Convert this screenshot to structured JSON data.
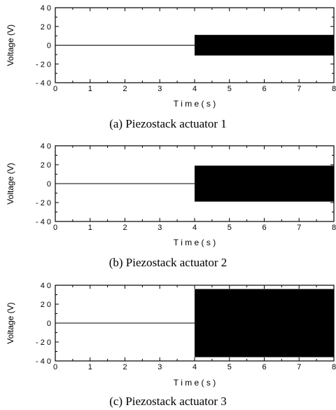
{
  "chart_data": [
    {
      "type": "line",
      "caption": "(a)  Piezostack  actuator  1",
      "xlabel": "T i m e  ( s )",
      "ylabel": "Voltage (V)",
      "xlim": [
        0,
        8
      ],
      "ylim": [
        -40,
        40
      ],
      "xticks": [
        0,
        1,
        2,
        3,
        4,
        5,
        6,
        7,
        8
      ],
      "yticks": [
        -40,
        -20,
        0,
        20,
        40
      ],
      "ytick_labels": [
        "- 4 0",
        "- 2 0",
        "0",
        "2 0",
        "4 0"
      ],
      "series": [
        {
          "x": [
            0,
            4.0
          ],
          "y": [
            0,
            0
          ]
        },
        {
          "x_start": 4.0,
          "x_end": 8.0,
          "y_min": -11,
          "y_max": 11,
          "style": "dense-oscillation"
        }
      ]
    },
    {
      "type": "line",
      "caption": "(b)  Piezostack  actuator  2",
      "xlabel": "T i m e  ( s )",
      "ylabel": "Voltage (V)",
      "xlim": [
        0,
        8
      ],
      "ylim": [
        -40,
        40
      ],
      "xticks": [
        0,
        1,
        2,
        3,
        4,
        5,
        6,
        7,
        8
      ],
      "yticks": [
        -40,
        -20,
        0,
        20,
        40
      ],
      "ytick_labels": [
        "- 4 0",
        "- 2 0",
        "0",
        "2 0",
        "4 0"
      ],
      "series": [
        {
          "x": [
            0,
            4.0
          ],
          "y": [
            0,
            0
          ]
        },
        {
          "x_start": 4.0,
          "x_end": 8.0,
          "y_min": -19,
          "y_max": 19,
          "style": "dense-oscillation"
        }
      ]
    },
    {
      "type": "line",
      "caption": "(c)  Piezostack  actuator  3",
      "xlabel": "T i m e  ( s )",
      "ylabel": "Voltage (V)",
      "xlim": [
        0,
        8
      ],
      "ylim": [
        -40,
        40
      ],
      "xticks": [
        0,
        1,
        2,
        3,
        4,
        5,
        6,
        7,
        8
      ],
      "yticks": [
        -40,
        -20,
        0,
        20,
        40
      ],
      "ytick_labels": [
        "- 4 0",
        "- 2 0",
        "0",
        "2 0",
        "4 0"
      ],
      "series": [
        {
          "x": [
            0,
            4.0
          ],
          "y": [
            0,
            0
          ]
        },
        {
          "x_start": 4.0,
          "x_end": 8.0,
          "y_min": -36,
          "y_max": 36,
          "style": "dense-oscillation"
        }
      ]
    }
  ]
}
